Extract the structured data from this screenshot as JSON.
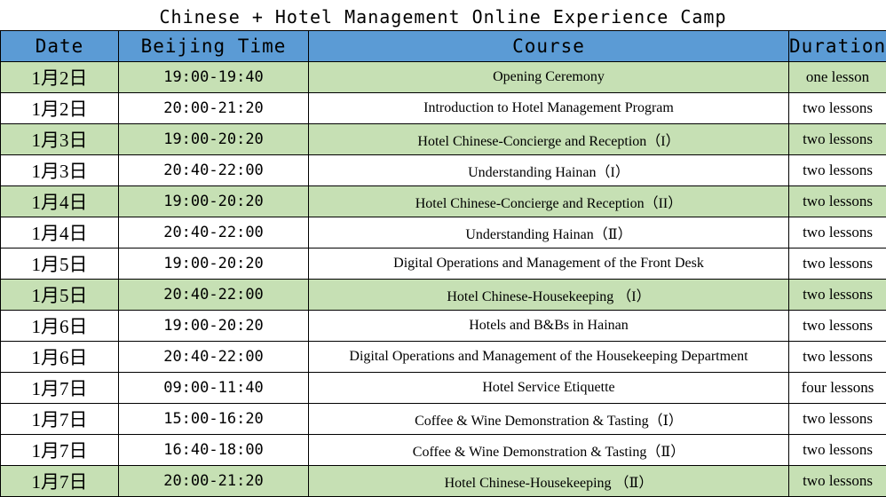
{
  "title": "Chinese + Hotel Management Online Experience Camp",
  "headers": {
    "date": "Date",
    "time": "Beijing Time",
    "course": "Course",
    "duration": "Duration"
  },
  "colors": {
    "header": "#5b9bd5",
    "highlight_row": "#c6e0b4"
  },
  "rows": [
    {
      "date": "1月2日",
      "time": "19:00-19:40",
      "course": "Opening Ceremony",
      "duration": "one lesson",
      "highlight": true
    },
    {
      "date": "1月2日",
      "time": "20:00-21:20",
      "course": "Introduction to Hotel Management Program",
      "duration": "two lessons",
      "highlight": false
    },
    {
      "date": "1月3日",
      "time": "19:00-20:20",
      "course": "Hotel Chinese-Concierge and Reception（I）",
      "duration": "two lessons",
      "highlight": true
    },
    {
      "date": "1月3日",
      "time": "20:40-22:00",
      "course": "Understanding Hainan（I）",
      "duration": "two lessons",
      "highlight": false
    },
    {
      "date": "1月4日",
      "time": "19:00-20:20",
      "course": "Hotel Chinese-Concierge and Reception（II）",
      "duration": "two lessons",
      "highlight": true
    },
    {
      "date": "1月4日",
      "time": "20:40-22:00",
      "course": "Understanding Hainan（Ⅱ）",
      "duration": "two lessons",
      "highlight": false
    },
    {
      "date": "1月5日",
      "time": "19:00-20:20",
      "course": "Digital Operations and Management of the Front Desk",
      "duration": "two lessons",
      "highlight": false
    },
    {
      "date": "1月5日",
      "time": "20:40-22:00",
      "course": "Hotel Chinese-Housekeeping （I）",
      "duration": "two lessons",
      "highlight": true
    },
    {
      "date": "1月6日",
      "time": "19:00-20:20",
      "course": "Hotels and B&Bs in Hainan",
      "duration": "two lessons",
      "highlight": false
    },
    {
      "date": "1月6日",
      "time": "20:40-22:00",
      "course": "Digital Operations and Management of the Housekeeping Department",
      "duration": "two lessons",
      "highlight": false
    },
    {
      "date": "1月7日",
      "time": "09:00-11:40",
      "course": "Hotel Service Etiquette",
      "duration": "four lessons",
      "highlight": false
    },
    {
      "date": "1月7日",
      "time": "15:00-16:20",
      "course": "Coffee & Wine Demonstration & Tasting（Ⅰ）",
      "duration": "two lessons",
      "highlight": false
    },
    {
      "date": "1月7日",
      "time": "16:40-18:00",
      "course": "Coffee & Wine Demonstration & Tasting（Ⅱ）",
      "duration": "two lessons",
      "highlight": false
    },
    {
      "date": "1月7日",
      "time": "20:00-21:20",
      "course": "Hotel Chinese-Housekeeping （Ⅱ）",
      "duration": "two lessons",
      "highlight": true
    }
  ]
}
